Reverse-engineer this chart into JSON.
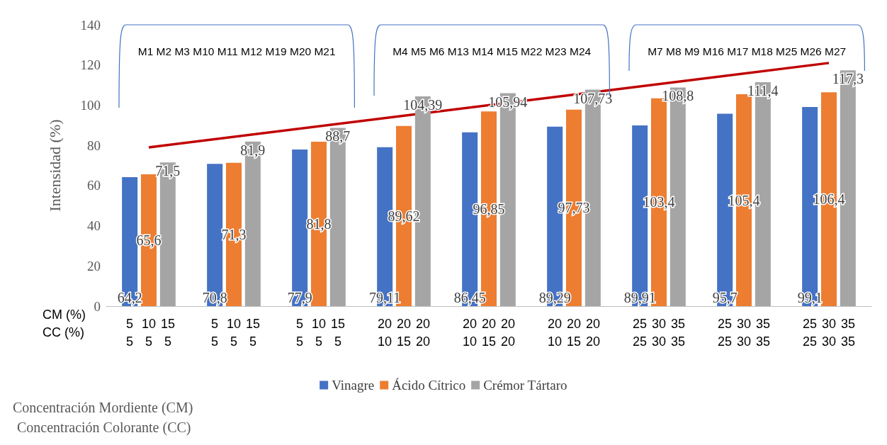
{
  "chart_data": {
    "type": "bar",
    "ylabel": "Intensidad (%)",
    "ylim": [
      0,
      140
    ],
    "yticks": [
      0,
      20,
      40,
      60,
      80,
      100,
      120,
      140
    ],
    "grid": false,
    "legend": "bottom",
    "categories": [
      "5 10 15\n5 5 5",
      "5 10 15\n5 5 5",
      "5 10 15\n5 5 5",
      "20 20 20\n10 15 20",
      "20 20 20\n10 15 20",
      "20 20 20\n10 15 20",
      "25 30 35\n25 30 35",
      "25 30 35\n25 30 35",
      "25 30 35\n25 30 35"
    ],
    "series": [
      {
        "name": "Vinagre",
        "color": "#4472c4",
        "values": [
          64.2,
          70.8,
          77.9,
          79.11,
          86.45,
          89.29,
          89.91,
          95.7,
          99.1
        ],
        "value_labels": [
          "64,2",
          "70,8",
          "77,9",
          "79,11",
          "86,45",
          "89,29",
          "89,91",
          "95,7",
          "99,1"
        ]
      },
      {
        "name": "Ácido Cítrico",
        "color": "#ed7d31",
        "values": [
          65.6,
          71.3,
          81.8,
          89.62,
          96.85,
          97.73,
          103.4,
          105.4,
          106.4
        ],
        "value_labels": [
          "65,6",
          "71,3",
          "81,8",
          "89,62",
          "96,85",
          "97,73",
          "103,4",
          "105,4",
          "106,4"
        ]
      },
      {
        "name": "Crémor Tártaro",
        "color": "#a5a5a5",
        "values": [
          71.5,
          81.9,
          88.7,
          104.39,
          105.94,
          107.73,
          108.8,
          111.4,
          117.3
        ],
        "value_labels": [
          "71,5",
          "81,9",
          "88,7",
          "104,39",
          "105,94",
          "107,73",
          "108,8",
          "111,4",
          "117,3"
        ]
      },
      {
        "type": "line",
        "color": "#c00000",
        "values": [
          79,
          null,
          null,
          null,
          null,
          null,
          null,
          null,
          121
        ]
      }
    ],
    "annotations": [
      "M1 M2 M3 M10 M11 M12 M19 M20 M21",
      "M4 M5 M6 M13 M14 M15 M22 M23 M24",
      "M7 M8 M9 M16 M17 M18 M25 M26 M27",
      "CM (%)",
      "CC (%)",
      "Concentración Mordiente (CM)",
      "Concentración Colorante (CC)"
    ]
  }
}
